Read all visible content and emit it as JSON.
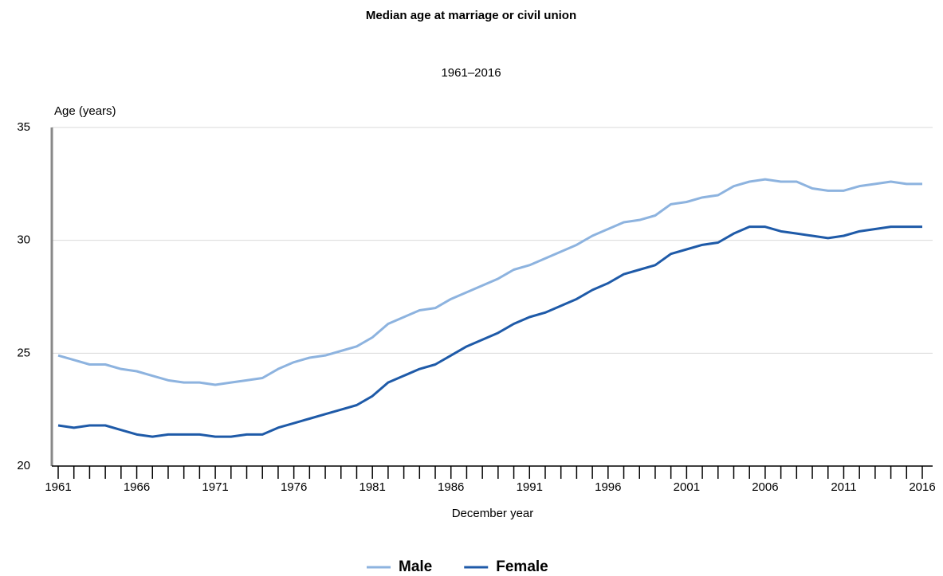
{
  "chart_data": {
    "type": "line",
    "title": "Median age at marriage or civil union",
    "subtitle": "1961–2016",
    "y_label": "Age (years)",
    "x_label": "December year",
    "x": [
      1961,
      1962,
      1963,
      1964,
      1965,
      1966,
      1967,
      1968,
      1969,
      1970,
      1971,
      1972,
      1973,
      1974,
      1975,
      1976,
      1977,
      1978,
      1979,
      1980,
      1981,
      1982,
      1983,
      1984,
      1985,
      1986,
      1987,
      1988,
      1989,
      1990,
      1991,
      1992,
      1993,
      1994,
      1995,
      1996,
      1997,
      1998,
      1999,
      2000,
      2001,
      2002,
      2003,
      2004,
      2005,
      2006,
      2007,
      2008,
      2009,
      2010,
      2011,
      2012,
      2013,
      2014,
      2015,
      2016
    ],
    "series": [
      {
        "name": "Male",
        "color": "#8db3df",
        "values": [
          24.9,
          24.7,
          24.5,
          24.5,
          24.3,
          24.2,
          24.0,
          23.8,
          23.7,
          23.7,
          23.6,
          23.7,
          23.8,
          23.9,
          24.3,
          24.6,
          24.8,
          24.9,
          25.1,
          25.3,
          25.7,
          26.3,
          26.6,
          26.9,
          27.0,
          27.4,
          27.7,
          28.0,
          28.3,
          28.7,
          28.9,
          29.2,
          29.5,
          29.8,
          30.2,
          30.5,
          30.8,
          30.9,
          31.1,
          31.6,
          31.7,
          31.9,
          32.0,
          32.4,
          32.6,
          32.7,
          32.6,
          32.6,
          32.3,
          32.2,
          32.2,
          32.4,
          32.5,
          32.6,
          32.5,
          32.5
        ]
      },
      {
        "name": "Female",
        "color": "#1e5aa8",
        "values": [
          21.8,
          21.7,
          21.8,
          21.8,
          21.6,
          21.4,
          21.3,
          21.4,
          21.4,
          21.4,
          21.3,
          21.3,
          21.4,
          21.4,
          21.7,
          21.9,
          22.1,
          22.3,
          22.5,
          22.7,
          23.1,
          23.7,
          24.0,
          24.3,
          24.5,
          24.9,
          25.3,
          25.6,
          25.9,
          26.3,
          26.6,
          26.8,
          27.1,
          27.4,
          27.8,
          28.1,
          28.5,
          28.7,
          28.9,
          29.4,
          29.6,
          29.8,
          29.9,
          30.3,
          30.6,
          30.6,
          30.4,
          30.3,
          30.2,
          30.1,
          30.2,
          30.4,
          30.5,
          30.6,
          30.6,
          30.6
        ]
      }
    ],
    "xlim": [
      1961,
      2016
    ],
    "xticks": [
      1961,
      1966,
      1971,
      1976,
      1981,
      1986,
      1991,
      1996,
      2001,
      2006,
      2011,
      2016
    ],
    "ylim": [
      20,
      35
    ],
    "yticks": [
      20,
      25,
      30,
      35
    ],
    "grid": true,
    "legend": "bottom"
  }
}
